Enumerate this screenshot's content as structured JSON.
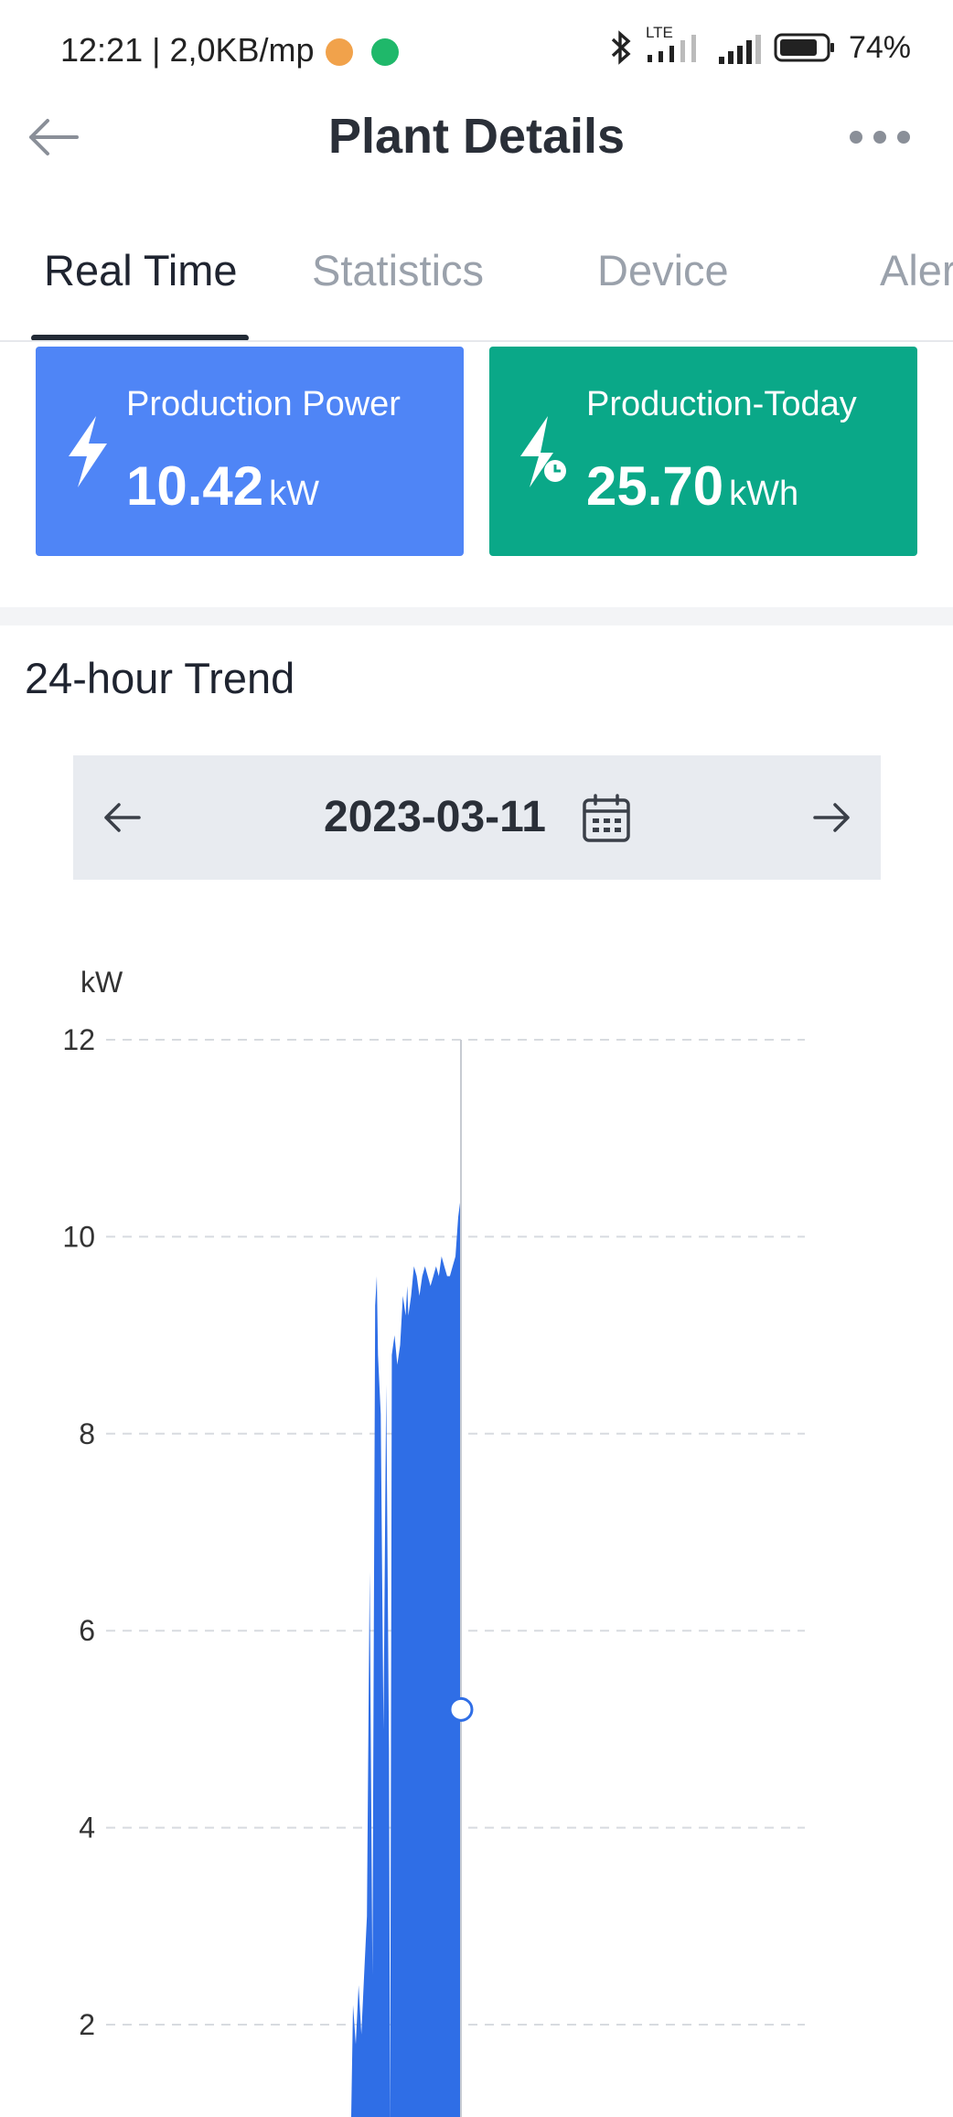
{
  "status_bar": {
    "time_speed": "12:21 | 2,0KB/mp",
    "network_label": "LTE",
    "battery": "74%",
    "icons": [
      "burger-king-app-icon",
      "phone-call-icon",
      "bluetooth-icon",
      "signal-icon",
      "signal-icon",
      "battery-icon"
    ]
  },
  "header": {
    "title": "Plant Details"
  },
  "tabs": [
    {
      "label": "Real Time",
      "active": true
    },
    {
      "label": "Statistics",
      "active": false
    },
    {
      "label": "Device",
      "active": false
    },
    {
      "label": "Aler",
      "active": false
    }
  ],
  "cards": {
    "power": {
      "label": "Production Power",
      "value": "10.42",
      "unit": "kW",
      "color": "#4f85f6"
    },
    "today": {
      "label": "Production-Today",
      "value": "25.70",
      "unit": "kWh",
      "color": "#0aa888"
    }
  },
  "trend": {
    "title": "24-hour Trend",
    "date": "2023-03-11"
  },
  "chart_data": {
    "type": "area",
    "ylabel": "kW",
    "ylim": [
      0,
      12
    ],
    "yticks": [
      2,
      4,
      6,
      8,
      10,
      12
    ],
    "grid": true,
    "color": "#2f6ee6",
    "x": [
      11.0,
      11.05,
      11.1,
      11.15,
      11.2,
      11.25,
      11.3,
      11.35,
      11.4,
      11.45,
      11.48,
      11.5,
      11.55,
      11.6,
      11.65,
      11.7,
      11.72,
      11.75,
      11.8,
      11.85,
      11.9,
      11.95,
      12.0,
      12.03,
      12.05,
      12.1,
      12.15,
      12.2,
      12.25,
      12.3,
      12.35,
      12.4,
      12.45,
      12.5,
      12.55,
      12.6,
      12.65,
      12.7,
      12.75,
      12.8,
      12.85,
      12.9,
      12.95,
      13.0
    ],
    "values": [
      0.5,
      2.2,
      1.8,
      2.4,
      1.9,
      2.5,
      3.1,
      6.6,
      2.5,
      9.3,
      9.6,
      8.8,
      8.2,
      5.0,
      8.5,
      4.8,
      0.9,
      8.8,
      9.0,
      8.7,
      8.9,
      9.4,
      9.2,
      9.5,
      9.2,
      9.4,
      9.7,
      9.6,
      9.4,
      9.6,
      9.7,
      9.6,
      9.5,
      9.6,
      9.7,
      9.6,
      9.8,
      9.7,
      9.6,
      9.6,
      9.7,
      9.8,
      10.2,
      10.42
    ],
    "xlim": [
      0,
      24
    ],
    "cursor": {
      "x": 13.0,
      "y": 5.2
    }
  }
}
